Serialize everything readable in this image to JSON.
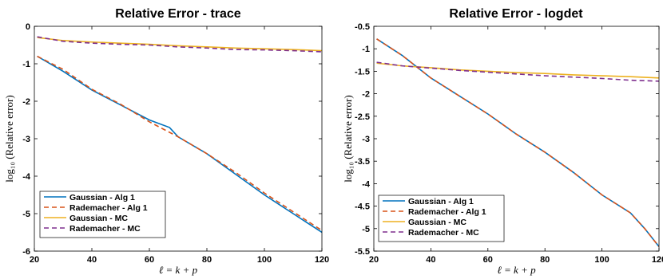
{
  "chart_data": [
    {
      "type": "line",
      "title": "Relative Error - trace",
      "xlabel": "ℓ = k + p",
      "ylabel": "log₁₀ (Relative error)",
      "xlim": [
        20,
        120
      ],
      "ylim": [
        -6,
        0
      ],
      "xticks": [
        "20",
        "40",
        "60",
        "80",
        "100",
        "120"
      ],
      "yticks": [
        "0",
        "-1",
        "-2",
        "-3",
        "-4",
        "-5",
        "-6"
      ],
      "legend_position": "bottom-left",
      "grid": false,
      "series": [
        {
          "name": "Gaussian - Alg 1",
          "color": "#0072BD",
          "dash": "solid",
          "x": [
            21,
            30,
            40,
            50,
            60,
            67,
            70,
            80,
            90,
            100,
            110,
            120
          ],
          "y": [
            -0.8,
            -1.2,
            -1.7,
            -2.1,
            -2.5,
            -2.7,
            -2.95,
            -3.4,
            -3.95,
            -4.5,
            -5.0,
            -5.5
          ]
        },
        {
          "name": "Rademacher - Alg 1",
          "color": "#D95319",
          "dash": "dashed",
          "x": [
            21,
            30,
            40,
            50,
            60,
            70,
            80,
            90,
            100,
            110,
            120
          ],
          "y": [
            -0.8,
            -1.15,
            -1.68,
            -2.08,
            -2.55,
            -2.95,
            -3.4,
            -3.9,
            -4.45,
            -4.95,
            -5.45
          ]
        },
        {
          "name": "Gaussian - MC",
          "color": "#EDB120",
          "dash": "solid",
          "x": [
            21,
            30,
            40,
            50,
            60,
            70,
            80,
            90,
            100,
            110,
            120
          ],
          "y": [
            -0.3,
            -0.38,
            -0.42,
            -0.45,
            -0.48,
            -0.52,
            -0.55,
            -0.58,
            -0.6,
            -0.62,
            -0.65
          ]
        },
        {
          "name": "Rademacher - MC",
          "color": "#7E2F8E",
          "dash": "dashed",
          "x": [
            21,
            30,
            40,
            50,
            60,
            70,
            80,
            90,
            100,
            110,
            120
          ],
          "y": [
            -0.28,
            -0.4,
            -0.45,
            -0.48,
            -0.5,
            -0.55,
            -0.58,
            -0.62,
            -0.63,
            -0.65,
            -0.68
          ]
        }
      ]
    },
    {
      "type": "line",
      "title": "Relative Error - logdet",
      "xlabel": "ℓ = k + p",
      "ylabel": "log₁₀ (Relative error)",
      "xlim": [
        20,
        120
      ],
      "ylim": [
        -5.5,
        -0.5
      ],
      "xticks": [
        "20",
        "40",
        "60",
        "80",
        "100",
        "120"
      ],
      "yticks": [
        "-0.5",
        "-1",
        "-1.5",
        "-2",
        "-2.5",
        "-3",
        "-3.5",
        "-4",
        "-4.5",
        "-5",
        "-5.5"
      ],
      "legend_position": "bottom-left",
      "grid": false,
      "series": [
        {
          "name": "Gaussian - Alg 1",
          "color": "#0072BD",
          "dash": "solid",
          "x": [
            21,
            30,
            40,
            50,
            60,
            70,
            80,
            90,
            100,
            110,
            115,
            120
          ],
          "y": [
            -0.78,
            -1.15,
            -1.65,
            -2.05,
            -2.45,
            -2.9,
            -3.3,
            -3.75,
            -4.25,
            -4.65,
            -5.0,
            -5.4
          ]
        },
        {
          "name": "Rademacher - Alg 1",
          "color": "#D95319",
          "dash": "dashed",
          "x": [
            21,
            30,
            40,
            50,
            60,
            70,
            80,
            90,
            100,
            110,
            115,
            120
          ],
          "y": [
            -0.78,
            -1.15,
            -1.65,
            -2.05,
            -2.45,
            -2.9,
            -3.3,
            -3.75,
            -4.25,
            -4.65,
            -5.0,
            -5.4
          ]
        },
        {
          "name": "Gaussian - MC",
          "color": "#EDB120",
          "dash": "solid",
          "x": [
            21,
            30,
            40,
            50,
            60,
            70,
            80,
            90,
            100,
            110,
            120
          ],
          "y": [
            -1.32,
            -1.38,
            -1.42,
            -1.47,
            -1.5,
            -1.53,
            -1.55,
            -1.58,
            -1.6,
            -1.62,
            -1.65
          ]
        },
        {
          "name": "Rademacher - MC",
          "color": "#7E2F8E",
          "dash": "dashed",
          "x": [
            21,
            30,
            40,
            50,
            60,
            70,
            80,
            90,
            100,
            110,
            120
          ],
          "y": [
            -1.3,
            -1.38,
            -1.43,
            -1.48,
            -1.52,
            -1.56,
            -1.6,
            -1.63,
            -1.66,
            -1.7,
            -1.72
          ]
        }
      ]
    }
  ]
}
